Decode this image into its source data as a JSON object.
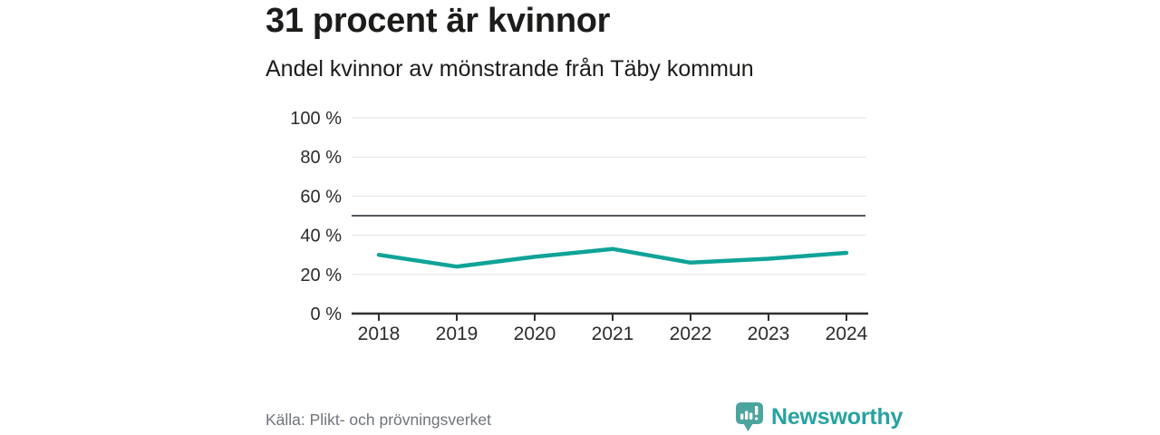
{
  "header": {
    "title": "31 procent är kvinnor",
    "subtitle": "Andel kvinnor av mönstrande från Täby kommun"
  },
  "chart_data": {
    "type": "line",
    "title": "31 procent är kvinnor",
    "subtitle": "Andel kvinnor av mönstrande från Täby kommun",
    "categories": [
      "2018",
      "2019",
      "2020",
      "2021",
      "2022",
      "2023",
      "2024"
    ],
    "values": [
      30,
      24,
      29,
      33,
      26,
      28,
      31
    ],
    "unit": "%",
    "ylim": [
      0,
      100
    ],
    "yticks": [
      0,
      20,
      40,
      60,
      80,
      100
    ],
    "ytick_labels": [
      "0 %",
      "20 %",
      "40 %",
      "60 %",
      "80 %",
      "100 %"
    ],
    "reference_line": 50,
    "grid": true,
    "legend": false,
    "line_color": "#10a398",
    "colors": {
      "grid": "#e2e2e2",
      "reference": "#54585d",
      "axis": "#2f2f2f",
      "tick_text": "#2b2b2b"
    }
  },
  "footer": {
    "source": "Källa: Plikt- och prövningsverket",
    "brand": {
      "name": "Newsworthy",
      "icon": "newsworthy-pin-barchart-icon",
      "icon_color": "#4ca49f",
      "text_color": "#27a2a2"
    }
  }
}
